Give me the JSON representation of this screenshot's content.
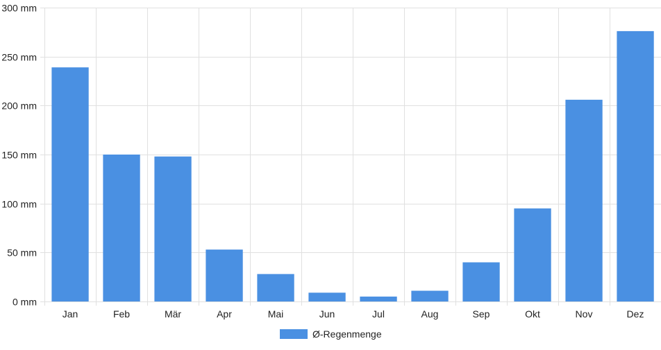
{
  "chart_data": {
    "type": "bar",
    "categories": [
      "Jan",
      "Feb",
      "Mär",
      "Apr",
      "Mai",
      "Jun",
      "Jul",
      "Aug",
      "Sep",
      "Okt",
      "Nov",
      "Dez"
    ],
    "series": [
      {
        "name": "Ø-Regenmenge",
        "values": [
          239,
          150,
          148,
          53,
          28,
          9,
          5,
          11,
          40,
          95,
          206,
          276
        ],
        "color": "#4a90e2"
      }
    ],
    "ylim": [
      0,
      300
    ],
    "yticks": [
      {
        "value": 0,
        "label": "0 mm"
      },
      {
        "value": 50,
        "label": "50 mm"
      },
      {
        "value": 100,
        "label": "100 mm"
      },
      {
        "value": 150,
        "label": "150 mm"
      },
      {
        "value": 200,
        "label": "200 mm"
      },
      {
        "value": 250,
        "label": "250 mm"
      },
      {
        "value": 300,
        "label": "300 mm"
      }
    ],
    "grid": true,
    "legend_position": "bottom-center",
    "gridline_color": "#e0e0e0"
  }
}
